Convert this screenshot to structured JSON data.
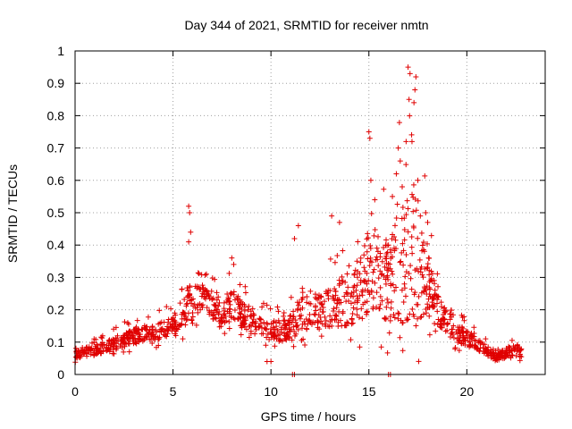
{
  "chart_data": {
    "type": "scatter",
    "title": "Day 344 of 2021, SRMTID for receiver nmtn",
    "xlabel": "GPS time / hours",
    "ylabel": "SRMTID / TECUs",
    "xlim": [
      0,
      24
    ],
    "ylim": [
      0,
      1
    ],
    "xticks": [
      0,
      5,
      10,
      15,
      20
    ],
    "yticks": [
      0,
      0.1,
      0.2,
      0.3,
      0.4,
      0.5,
      0.6,
      0.7,
      0.8,
      0.9,
      1
    ],
    "ytick_labels": [
      "0",
      "0.1",
      "0.2",
      "0.3",
      "0.4",
      "0.5",
      "0.6",
      "0.7",
      "0.8",
      "0.9",
      "1"
    ],
    "grid": true,
    "marker": "+",
    "marker_color": "#e00000",
    "series": [
      {
        "name": "SRMTID",
        "envelope_description_hours": [
          0,
          22.8
        ],
        "envelope": [
          {
            "x": 0.0,
            "base": 0.06,
            "spread": 0.03
          },
          {
            "x": 1.0,
            "base": 0.07,
            "spread": 0.03
          },
          {
            "x": 2.0,
            "base": 0.09,
            "spread": 0.04
          },
          {
            "x": 3.0,
            "base": 0.11,
            "spread": 0.05
          },
          {
            "x": 4.0,
            "base": 0.12,
            "spread": 0.05
          },
          {
            "x": 5.0,
            "base": 0.14,
            "spread": 0.06
          },
          {
            "x": 5.8,
            "base": 0.2,
            "spread": 0.12
          },
          {
            "x": 6.5,
            "base": 0.22,
            "spread": 0.08
          },
          {
            "x": 7.5,
            "base": 0.18,
            "spread": 0.07
          },
          {
            "x": 8.0,
            "base": 0.2,
            "spread": 0.1
          },
          {
            "x": 9.0,
            "base": 0.15,
            "spread": 0.07
          },
          {
            "x": 10.0,
            "base": 0.12,
            "spread": 0.06
          },
          {
            "x": 11.0,
            "base": 0.13,
            "spread": 0.08
          },
          {
            "x": 11.5,
            "base": 0.18,
            "spread": 0.14
          },
          {
            "x": 12.5,
            "base": 0.18,
            "spread": 0.1
          },
          {
            "x": 13.5,
            "base": 0.2,
            "spread": 0.15
          },
          {
            "x": 14.5,
            "base": 0.22,
            "spread": 0.18
          },
          {
            "x": 15.0,
            "base": 0.28,
            "spread": 0.3
          },
          {
            "x": 16.0,
            "base": 0.25,
            "spread": 0.25
          },
          {
            "x": 16.5,
            "base": 0.28,
            "spread": 0.35
          },
          {
            "x": 17.0,
            "base": 0.3,
            "spread": 0.4
          },
          {
            "x": 17.3,
            "base": 0.32,
            "spread": 0.45
          },
          {
            "x": 18.0,
            "base": 0.25,
            "spread": 0.2
          },
          {
            "x": 18.5,
            "base": 0.18,
            "spread": 0.1
          },
          {
            "x": 19.5,
            "base": 0.12,
            "spread": 0.06
          },
          {
            "x": 20.5,
            "base": 0.09,
            "spread": 0.04
          },
          {
            "x": 21.5,
            "base": 0.05,
            "spread": 0.02
          },
          {
            "x": 22.5,
            "base": 0.07,
            "spread": 0.05
          },
          {
            "x": 22.8,
            "base": 0.06,
            "spread": 0.03
          }
        ],
        "highlight_points": [
          {
            "x": 17.0,
            "y": 0.95
          },
          {
            "x": 17.1,
            "y": 0.93
          },
          {
            "x": 17.4,
            "y": 0.92
          },
          {
            "x": 17.35,
            "y": 0.88
          },
          {
            "x": 17.3,
            "y": 0.84
          },
          {
            "x": 17.05,
            "y": 0.85
          },
          {
            "x": 15.0,
            "y": 0.75
          },
          {
            "x": 15.05,
            "y": 0.73
          },
          {
            "x": 16.5,
            "y": 0.7
          },
          {
            "x": 16.9,
            "y": 0.72
          },
          {
            "x": 17.2,
            "y": 0.72
          },
          {
            "x": 16.6,
            "y": 0.66
          },
          {
            "x": 15.1,
            "y": 0.6
          },
          {
            "x": 16.4,
            "y": 0.62
          },
          {
            "x": 5.8,
            "y": 0.52
          },
          {
            "x": 5.85,
            "y": 0.5
          },
          {
            "x": 5.9,
            "y": 0.44
          },
          {
            "x": 5.8,
            "y": 0.41
          },
          {
            "x": 11.4,
            "y": 0.46
          },
          {
            "x": 13.1,
            "y": 0.49
          },
          {
            "x": 13.5,
            "y": 0.47
          },
          {
            "x": 17.9,
            "y": 0.5
          },
          {
            "x": 18.0,
            "y": 0.47
          },
          {
            "x": 15.3,
            "y": 0.54
          },
          {
            "x": 16.2,
            "y": 0.55
          },
          {
            "x": 16.7,
            "y": 0.58
          },
          {
            "x": 17.5,
            "y": 0.6
          },
          {
            "x": 8.0,
            "y": 0.36
          },
          {
            "x": 8.1,
            "y": 0.34
          },
          {
            "x": 11.2,
            "y": 0.42
          },
          {
            "x": 11.1,
            "y": 0.0
          },
          {
            "x": 11.2,
            "y": 0.0
          },
          {
            "x": 16.0,
            "y": 0.0
          },
          {
            "x": 16.1,
            "y": 0.0
          },
          {
            "x": 9.8,
            "y": 0.04
          },
          {
            "x": 10.0,
            "y": 0.04
          }
        ]
      }
    ]
  }
}
